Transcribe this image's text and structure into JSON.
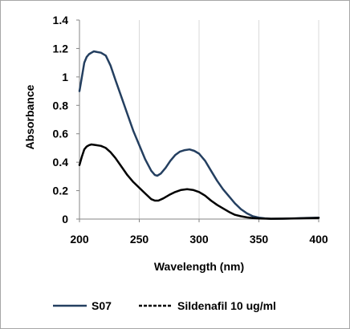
{
  "chart_data": {
    "type": "line",
    "title": "",
    "xlabel": "Wavelength (nm)",
    "ylabel": "Absorbance",
    "xlim": [
      200,
      400
    ],
    "ylim": [
      0,
      1.4
    ],
    "xticks": [
      "200",
      "250",
      "300",
      "350",
      "400"
    ],
    "yticks": [
      "0",
      "0.2",
      "0.4",
      "0.6",
      "0.8",
      "1",
      "1.2",
      "1.4"
    ],
    "grid": "vertical",
    "legend_position": "bottom",
    "series": [
      {
        "name": "S07",
        "color": "#243f60",
        "style": "solid",
        "points": [
          [
            200,
            0.9
          ],
          [
            202,
            1.0
          ],
          [
            204,
            1.1
          ],
          [
            206,
            1.14
          ],
          [
            208,
            1.16
          ],
          [
            210,
            1.17
          ],
          [
            212,
            1.18
          ],
          [
            215,
            1.175
          ],
          [
            218,
            1.17
          ],
          [
            222,
            1.15
          ],
          [
            226,
            1.08
          ],
          [
            230,
            0.98
          ],
          [
            235,
            0.86
          ],
          [
            240,
            0.74
          ],
          [
            245,
            0.62
          ],
          [
            250,
            0.52
          ],
          [
            255,
            0.42
          ],
          [
            260,
            0.34
          ],
          [
            263,
            0.31
          ],
          [
            265,
            0.305
          ],
          [
            268,
            0.32
          ],
          [
            272,
            0.36
          ],
          [
            276,
            0.41
          ],
          [
            280,
            0.45
          ],
          [
            284,
            0.475
          ],
          [
            288,
            0.485
          ],
          [
            292,
            0.49
          ],
          [
            296,
            0.48
          ],
          [
            300,
            0.46
          ],
          [
            305,
            0.41
          ],
          [
            310,
            0.34
          ],
          [
            315,
            0.27
          ],
          [
            320,
            0.21
          ],
          [
            325,
            0.16
          ],
          [
            330,
            0.11
          ],
          [
            335,
            0.07
          ],
          [
            340,
            0.04
          ],
          [
            345,
            0.02
          ],
          [
            350,
            0.01
          ],
          [
            355,
            0.005
          ],
          [
            360,
            0.002
          ],
          [
            370,
            0.003
          ],
          [
            380,
            0.005
          ],
          [
            390,
            0.008
          ],
          [
            400,
            0.01
          ]
        ]
      },
      {
        "name": "Sildenafil 10 ug/ml",
        "color": "#000000",
        "style": "solid",
        "points": [
          [
            200,
            0.38
          ],
          [
            202,
            0.44
          ],
          [
            204,
            0.49
          ],
          [
            206,
            0.51
          ],
          [
            208,
            0.52
          ],
          [
            210,
            0.525
          ],
          [
            214,
            0.52
          ],
          [
            218,
            0.515
          ],
          [
            222,
            0.5
          ],
          [
            226,
            0.47
          ],
          [
            230,
            0.43
          ],
          [
            235,
            0.37
          ],
          [
            240,
            0.31
          ],
          [
            245,
            0.26
          ],
          [
            250,
            0.22
          ],
          [
            255,
            0.18
          ],
          [
            260,
            0.14
          ],
          [
            263,
            0.13
          ],
          [
            266,
            0.13
          ],
          [
            270,
            0.145
          ],
          [
            275,
            0.17
          ],
          [
            280,
            0.19
          ],
          [
            285,
            0.205
          ],
          [
            290,
            0.21
          ],
          [
            295,
            0.205
          ],
          [
            300,
            0.19
          ],
          [
            305,
            0.165
          ],
          [
            310,
            0.13
          ],
          [
            315,
            0.1
          ],
          [
            320,
            0.075
          ],
          [
            325,
            0.05
          ],
          [
            330,
            0.03
          ],
          [
            335,
            0.02
          ],
          [
            340,
            0.012
          ],
          [
            345,
            0.007
          ],
          [
            350,
            0.004
          ],
          [
            360,
            0.002
          ],
          [
            370,
            0.003
          ],
          [
            380,
            0.004
          ],
          [
            390,
            0.006
          ],
          [
            400,
            0.008
          ]
        ]
      }
    ]
  }
}
